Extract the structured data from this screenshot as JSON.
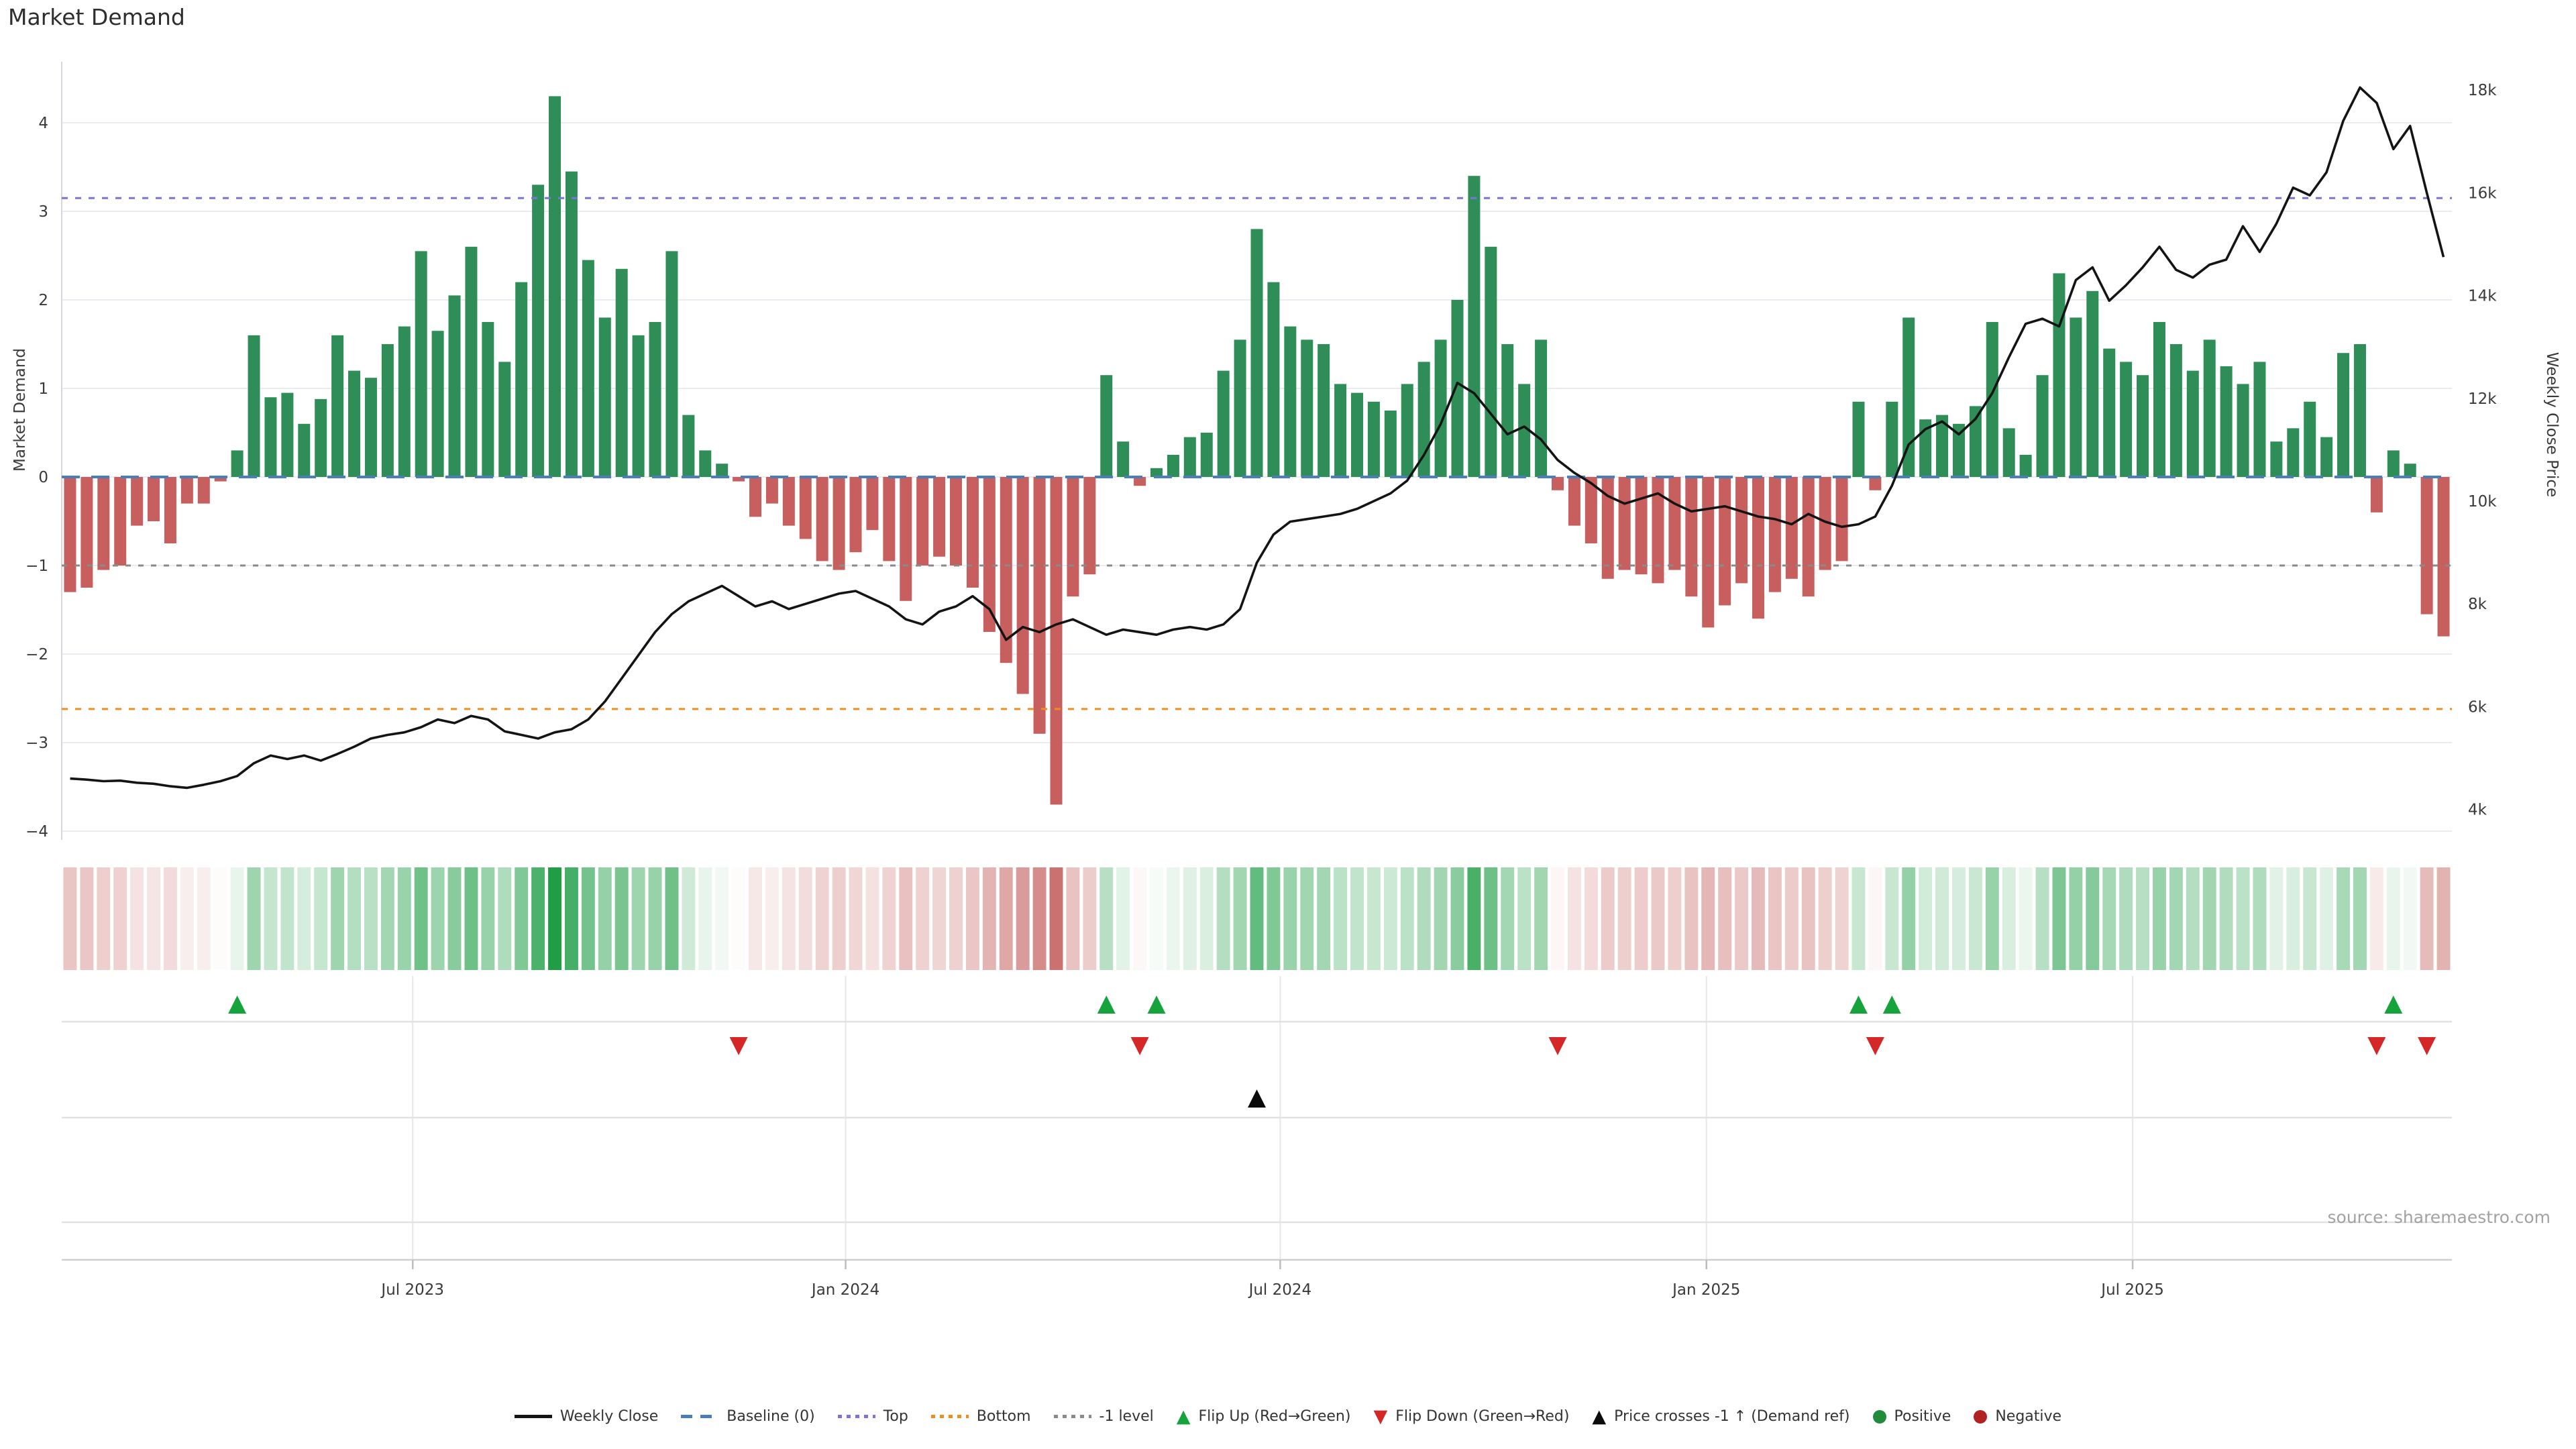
{
  "page": {
    "title": "Market Demand",
    "source_note": "source: sharemaestro.com"
  },
  "chart_data": {
    "type": "combo-bar-line-heatmap",
    "title": "Market Demand",
    "xlabel": "",
    "x_axis": {
      "tick_labels": [
        "Jul 2023",
        "Jan 2024",
        "Jul 2024",
        "Jan 2025",
        "Jul 2025"
      ],
      "tick_weeks": [
        20.5,
        46.4,
        72.4,
        97.9,
        123.4
      ],
      "n_weeks": 143
    },
    "y_left": {
      "label": "Market Demand",
      "tick_values": [
        -4,
        -3,
        -2,
        -1,
        0,
        1,
        2,
        3,
        4
      ],
      "tick_labels": [
        "−4",
        "−3",
        "−2",
        "−1",
        "0",
        "1",
        "2",
        "3",
        "4"
      ],
      "range": [
        -4.1,
        4.7
      ],
      "grid": true
    },
    "y_right": {
      "label": "Weekly Close Price",
      "tick_values": [
        4,
        6,
        8,
        10,
        12,
        14,
        16,
        18
      ],
      "tick_labels": [
        "4k",
        "6k",
        "8k",
        "10k",
        "12k",
        "14k",
        "16k",
        "18k"
      ],
      "grid": false
    },
    "reference_lines": [
      {
        "id": "baseline",
        "label": "Baseline (0)",
        "value": 0,
        "color": "#4a7ebb",
        "dash": "27 17",
        "width": 4
      },
      {
        "id": "top",
        "label": "Top",
        "value": 3.15,
        "color": "#7b74d8",
        "dash": "9 11",
        "width": 3
      },
      {
        "id": "bottom",
        "label": "Bottom",
        "value": -2.62,
        "color": "#f08d1d",
        "dash": "9 11",
        "width": 3
      },
      {
        "id": "minus1",
        "label": "-1 level",
        "value": -1.0,
        "color": "#8a8a8a",
        "dash": "8 11",
        "width": 3
      }
    ],
    "series": [
      {
        "id": "market_demand",
        "name": "Market Demand",
        "type": "bar",
        "axis": "left",
        "color_positive": "#2f8e57",
        "color_negative": "#c85f5f",
        "values": [
          -1.3,
          -1.25,
          -1.05,
          -1.0,
          -0.55,
          -0.5,
          -0.75,
          -0.3,
          -0.3,
          -0.05,
          0.3,
          1.6,
          0.9,
          0.95,
          0.6,
          0.88,
          1.6,
          1.2,
          1.12,
          1.5,
          1.7,
          2.55,
          1.65,
          2.05,
          2.6,
          1.75,
          1.3,
          2.2,
          3.3,
          4.3,
          3.45,
          2.45,
          1.8,
          2.35,
          1.6,
          1.75,
          2.55,
          0.7,
          0.3,
          0.15,
          -0.05,
          -0.45,
          -0.3,
          -0.55,
          -0.7,
          -0.95,
          -1.05,
          -0.85,
          -0.6,
          -0.95,
          -1.4,
          -1.0,
          -0.9,
          -1.0,
          -1.25,
          -1.75,
          -2.1,
          -2.45,
          -2.9,
          -3.7,
          -1.35,
          -1.1,
          1.15,
          0.4,
          -0.1,
          0.1,
          0.25,
          0.45,
          0.5,
          1.2,
          1.55,
          2.8,
          2.2,
          1.7,
          1.55,
          1.5,
          1.05,
          0.95,
          0.85,
          0.75,
          1.05,
          1.3,
          1.55,
          2.0,
          3.4,
          2.6,
          1.5,
          1.05,
          1.55,
          -0.15,
          -0.55,
          -0.75,
          -1.15,
          -1.05,
          -1.1,
          -1.2,
          -1.05,
          -1.35,
          -1.7,
          -1.45,
          -1.2,
          -1.6,
          -1.3,
          -1.15,
          -1.35,
          -1.05,
          -0.95,
          0.85,
          -0.15,
          0.85,
          1.8,
          0.65,
          0.7,
          0.6,
          0.8,
          1.75,
          0.55,
          0.25,
          1.15,
          2.3,
          1.8,
          2.1,
          1.45,
          1.3,
          1.15,
          1.75,
          1.5,
          1.2,
          1.55,
          1.25,
          1.05,
          1.3,
          0.4,
          0.55,
          0.85,
          0.45,
          1.4,
          1.5,
          -0.4,
          0.3,
          0.15,
          -1.55,
          -1.8
        ]
      },
      {
        "id": "weekly_close",
        "name": "Weekly Close",
        "type": "line",
        "axis": "right",
        "color": "#141414",
        "unit": "k",
        "values": [
          4.6,
          4.58,
          4.55,
          4.56,
          4.52,
          4.5,
          4.45,
          4.42,
          4.48,
          4.55,
          4.65,
          4.9,
          5.05,
          4.98,
          5.05,
          4.95,
          5.08,
          5.22,
          5.38,
          5.45,
          5.5,
          5.6,
          5.75,
          5.68,
          5.82,
          5.75,
          5.52,
          5.45,
          5.38,
          5.5,
          5.56,
          5.75,
          6.1,
          6.55,
          7.0,
          7.45,
          7.8,
          8.05,
          8.2,
          8.35,
          8.15,
          7.95,
          8.05,
          7.9,
          8.0,
          8.1,
          8.2,
          8.25,
          8.1,
          7.95,
          7.7,
          7.6,
          7.85,
          7.95,
          8.15,
          7.9,
          7.3,
          7.55,
          7.45,
          7.6,
          7.7,
          7.55,
          7.4,
          7.5,
          7.45,
          7.4,
          7.5,
          7.55,
          7.5,
          7.6,
          7.9,
          8.8,
          9.35,
          9.6,
          9.65,
          9.7,
          9.75,
          9.85,
          10.0,
          10.15,
          10.4,
          10.9,
          11.5,
          12.3,
          12.1,
          11.7,
          11.3,
          11.45,
          11.2,
          10.8,
          10.55,
          10.35,
          10.1,
          9.95,
          10.05,
          10.15,
          9.95,
          9.8,
          9.85,
          9.9,
          9.8,
          9.7,
          9.65,
          9.55,
          9.75,
          9.6,
          9.5,
          9.55,
          9.7,
          10.3,
          11.1,
          11.4,
          11.55,
          11.3,
          11.6,
          12.1,
          12.8,
          13.45,
          13.55,
          13.4,
          14.3,
          14.55,
          13.9,
          14.2,
          14.55,
          14.95,
          14.5,
          14.35,
          14.6,
          14.7,
          15.35,
          14.85,
          15.4,
          16.1,
          15.95,
          16.4,
          17.4,
          18.05,
          17.75,
          16.85,
          17.3,
          16.0,
          14.75
        ]
      }
    ],
    "heatmap": {
      "type": "heatmap",
      "values_ref": "market_demand",
      "positive_color": "#1f9e46",
      "negative_color": "#c45f5c",
      "max_abs": 4.3
    },
    "markers": {
      "flip_up": {
        "label": "Flip Up (Red→Green)",
        "color": "#17a33c",
        "weeks": [
          10,
          62,
          65,
          107,
          109,
          139
        ]
      },
      "flip_down": {
        "label": "Flip Down (Green→Red)",
        "color": "#d62728",
        "weeks": [
          40,
          64,
          89,
          108,
          138,
          141
        ]
      },
      "price_cross": {
        "label": "Price crosses -1 ↑ (Demand ref)",
        "color": "#0b0b0b",
        "weeks": [
          71
        ]
      }
    }
  },
  "legend": {
    "items": [
      {
        "label": "Weekly Close",
        "swatch": "line",
        "color": "#141414"
      },
      {
        "label": "Baseline (0)",
        "swatch": "dash",
        "color": "#4a7ebb"
      },
      {
        "label": "Top",
        "swatch": "dot",
        "color": "#7b74d8"
      },
      {
        "label": "Bottom",
        "swatch": "dot",
        "color": "#f08d1d"
      },
      {
        "label": "-1 level",
        "swatch": "dot",
        "color": "#8a8a8a"
      },
      {
        "label": "Flip Up (Red→Green)",
        "swatch": "tri-up",
        "color": "#17a33c"
      },
      {
        "label": "Flip Down (Green→Red)",
        "swatch": "tri-down",
        "color": "#d62728"
      },
      {
        "label": "Price crosses -1 ↑ (Demand ref)",
        "swatch": "tri-up",
        "color": "#0b0b0b"
      },
      {
        "label": "Positive",
        "swatch": "circle",
        "color": "#1f8b3b"
      },
      {
        "label": "Negative",
        "swatch": "circle",
        "color": "#b22222"
      }
    ]
  }
}
